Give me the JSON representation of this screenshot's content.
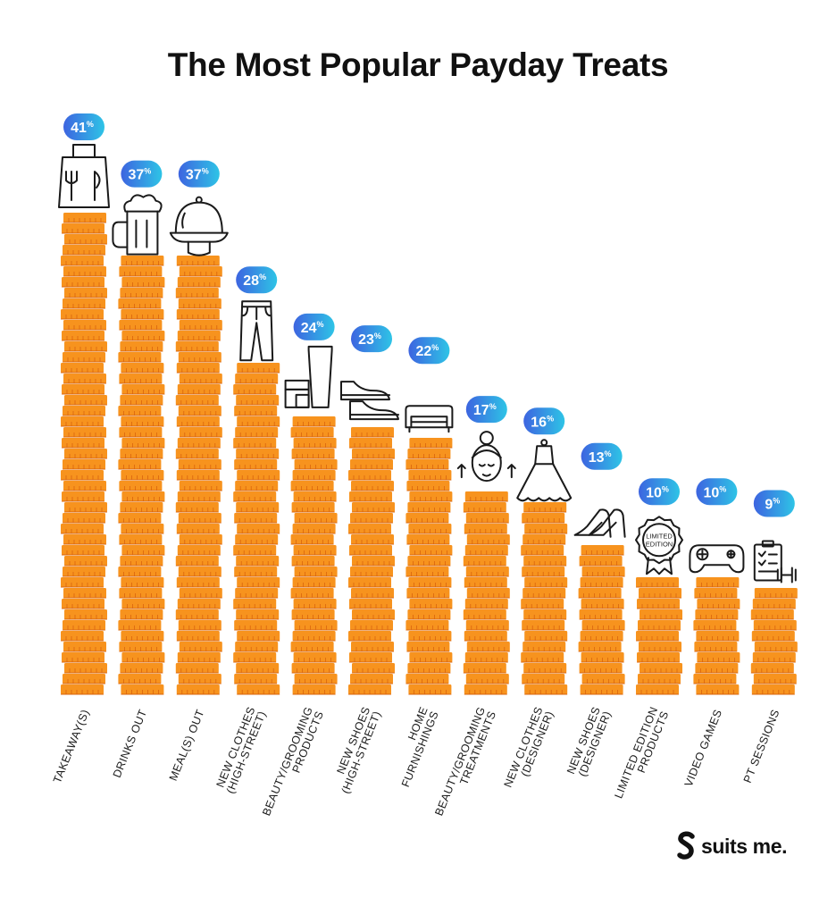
{
  "title": "The Most Popular Payday Treats",
  "brand": {
    "name": "suits me."
  },
  "colors": {
    "coin": "#F7931E",
    "coin_dark": "#D9640E",
    "badge_start": "#3D64E0",
    "badge_end": "#2EC4E6",
    "icon_stroke": "#1a1a1a"
  },
  "chart_data": {
    "type": "bar",
    "title": "The Most Popular Payday Treats",
    "unit": "%",
    "categories": [
      {
        "lines": [
          "TAKEAWAY(S)"
        ],
        "icon": "takeaway-bag-icon"
      },
      {
        "lines": [
          "DRINKS OUT"
        ],
        "icon": "beer-mug-icon"
      },
      {
        "lines": [
          "MEAL(S) OUT"
        ],
        "icon": "serving-cloche-icon"
      },
      {
        "lines": [
          "NEW CLOTHES",
          "(HIGH-STREET)"
        ],
        "icon": "trousers-icon"
      },
      {
        "lines": [
          "BEAUTY/GROOMING",
          "PRODUCTS"
        ],
        "icon": "cosmetics-icon"
      },
      {
        "lines": [
          "NEW SHOES",
          "(HIGH-STREET)"
        ],
        "icon": "sneakers-icon"
      },
      {
        "lines": [
          "HOME",
          "FURNISHINGS"
        ],
        "icon": "sofa-icon"
      },
      {
        "lines": [
          "BEAUTY/GROOMING",
          "TREATMENTS"
        ],
        "icon": "face-treatment-icon"
      },
      {
        "lines": [
          "NEW CLOTHES",
          "(DESIGNER)"
        ],
        "icon": "dress-icon"
      },
      {
        "lines": [
          "NEW SHOES",
          "(DESIGNER)"
        ],
        "icon": "high-heels-icon"
      },
      {
        "lines": [
          "LIMITED EDITION",
          "PRODUCTS"
        ],
        "icon": "limited-edition-badge-icon"
      },
      {
        "lines": [
          "VIDEO GAMES"
        ],
        "icon": "game-controller-icon"
      },
      {
        "lines": [
          "PT SESSIONS"
        ],
        "icon": "clipboard-dumbbell-icon"
      }
    ],
    "values": [
      41,
      37,
      37,
      28,
      24,
      23,
      22,
      17,
      16,
      13,
      10,
      10,
      9
    ],
    "icon_texts": {
      "limited_edition": [
        "LIMITED",
        "EDITION"
      ]
    },
    "ylim": [
      0,
      41
    ],
    "grid": false,
    "legend": "none"
  }
}
